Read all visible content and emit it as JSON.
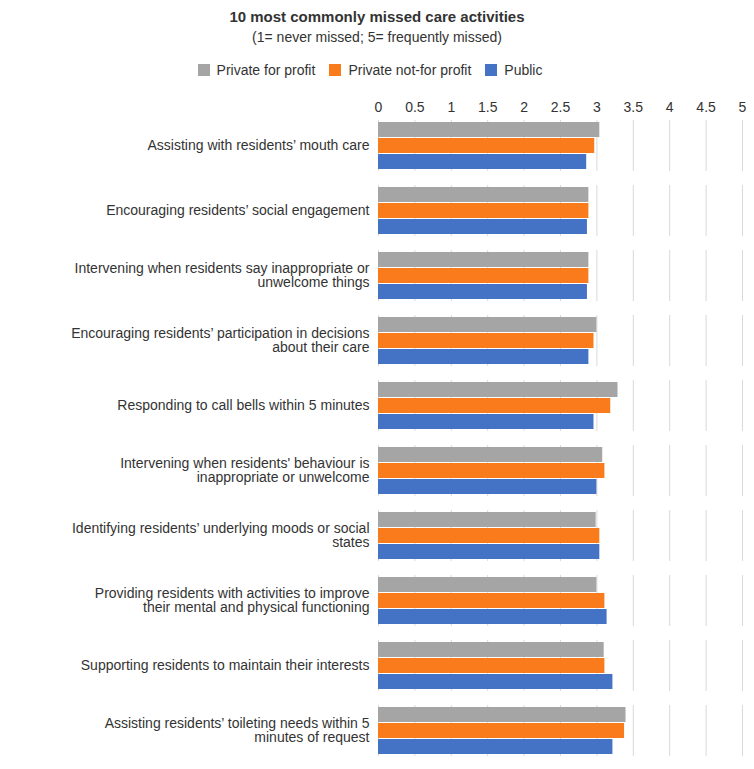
{
  "chart_data": {
    "type": "bar",
    "orientation": "horizontal",
    "title": "10 most commonly missed care activities",
    "subtitle": "(1= never missed; 5= frequently missed)",
    "categories": [
      "Assisting with residents’ mouth care",
      "Encouraging residents’ social engagement",
      "Intervening when residents say inappropriate or unwelcome things",
      "Encouraging residents’ participation in decisions about their care",
      "Responding to call bells within 5 minutes",
      "Intervening when residents' behaviour is inappropriate or unwelcome",
      "Identifying residents’ underlying moods or social states",
      "Providing residents with activities to improve their mental and physical functioning",
      "Supporting residents to maintain their interests",
      "Assisting residents’ toileting needs within 5 minutes of request"
    ],
    "series": [
      {
        "name": "Private for profit",
        "color": "#a5a5a5",
        "values": [
          3.04,
          2.89,
          2.89,
          3.0,
          3.29,
          3.08,
          2.99,
          3.0,
          3.1,
          3.4
        ]
      },
      {
        "name": "Private not-for profit",
        "color": "#f97b1c",
        "values": [
          2.97,
          2.89,
          2.89,
          2.96,
          3.19,
          3.11,
          3.04,
          3.11,
          3.11,
          3.38
        ]
      },
      {
        "name": "Public",
        "color": "#4472c4",
        "values": [
          2.86,
          2.87,
          2.87,
          2.89,
          2.96,
          3.0,
          3.04,
          3.14,
          3.22,
          3.22
        ]
      }
    ],
    "xlim": [
      0,
      5
    ],
    "xticks": [
      0,
      0.5,
      1,
      1.5,
      2,
      2.5,
      3,
      3.5,
      4,
      4.5,
      5
    ],
    "grid": true,
    "legend": "top"
  }
}
